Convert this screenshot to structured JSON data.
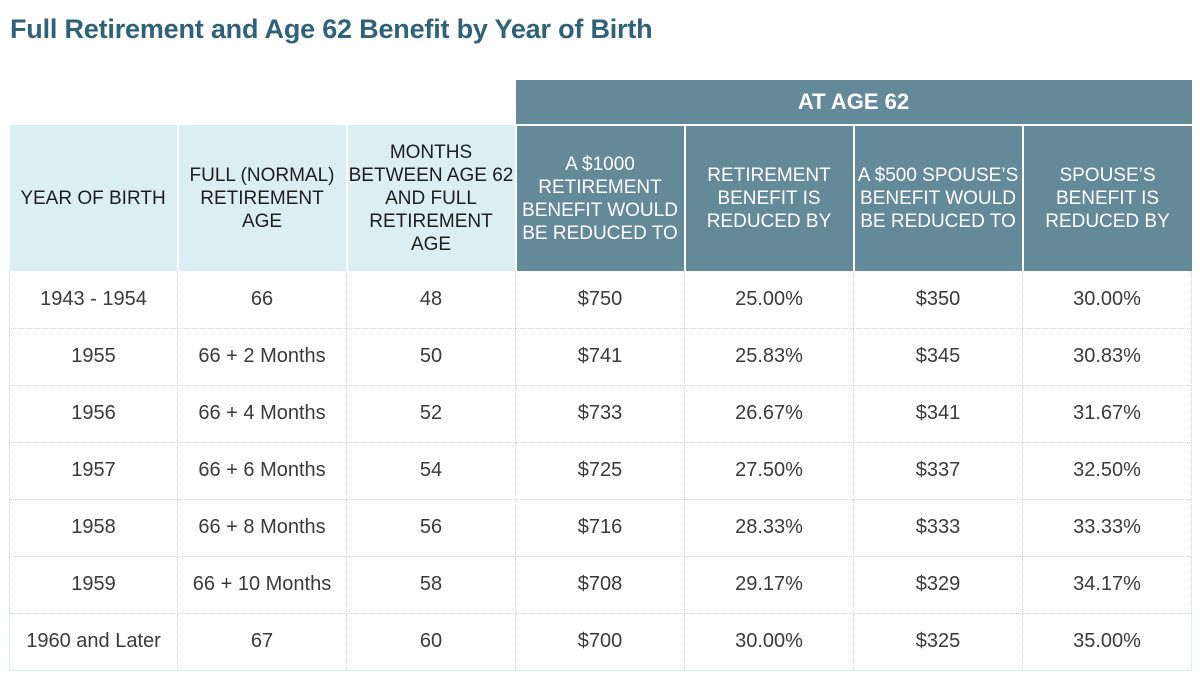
{
  "chart_data": {
    "type": "table",
    "title": "Full Retirement and Age 62 Benefit by Year of Birth",
    "group_header": "AT AGE 62",
    "columns": [
      "YEAR OF BIRTH",
      "FULL (NORMAL) RETIREMENT AGE",
      "MONTHS BETWEEN AGE 62 AND FULL RETIREMENT AGE",
      "A $1000 RETIREMENT BENEFIT WOULD BE REDUCED TO",
      "RETIREMENT BENEFIT IS REDUCED BY",
      "A $500 SPOUSE’S BENEFIT WOULD BE REDUCED TO",
      "SPOUSE’S BENEFIT IS REDUCED BY"
    ],
    "rows": [
      [
        "1943 - 1954",
        "66",
        "48",
        "$750",
        "25.00%",
        "$350",
        "30.00%"
      ],
      [
        "1955",
        "66 + 2 Months",
        "50",
        "$741",
        "25.83%",
        "$345",
        "30.83%"
      ],
      [
        "1956",
        "66 + 4 Months",
        "52",
        "$733",
        "26.67%",
        "$341",
        "31.67%"
      ],
      [
        "1957",
        "66 + 6 Months",
        "54",
        "$725",
        "27.50%",
        "$337",
        "32.50%"
      ],
      [
        "1958",
        "66 + 8 Months",
        "56",
        "$716",
        "28.33%",
        "$333",
        "33.33%"
      ],
      [
        "1959",
        "66 + 10 Months",
        "58",
        "$708",
        "29.17%",
        "$329",
        "34.17%"
      ],
      [
        "1960 and Later",
        "67",
        "60",
        "$700",
        "30.00%",
        "$325",
        "35.00%"
      ]
    ],
    "colors": {
      "title": "#2f6279",
      "group_header_bg": "#648a99",
      "light_header_bg": "#dbeef2",
      "dark_header_bg": "#648a99"
    }
  }
}
